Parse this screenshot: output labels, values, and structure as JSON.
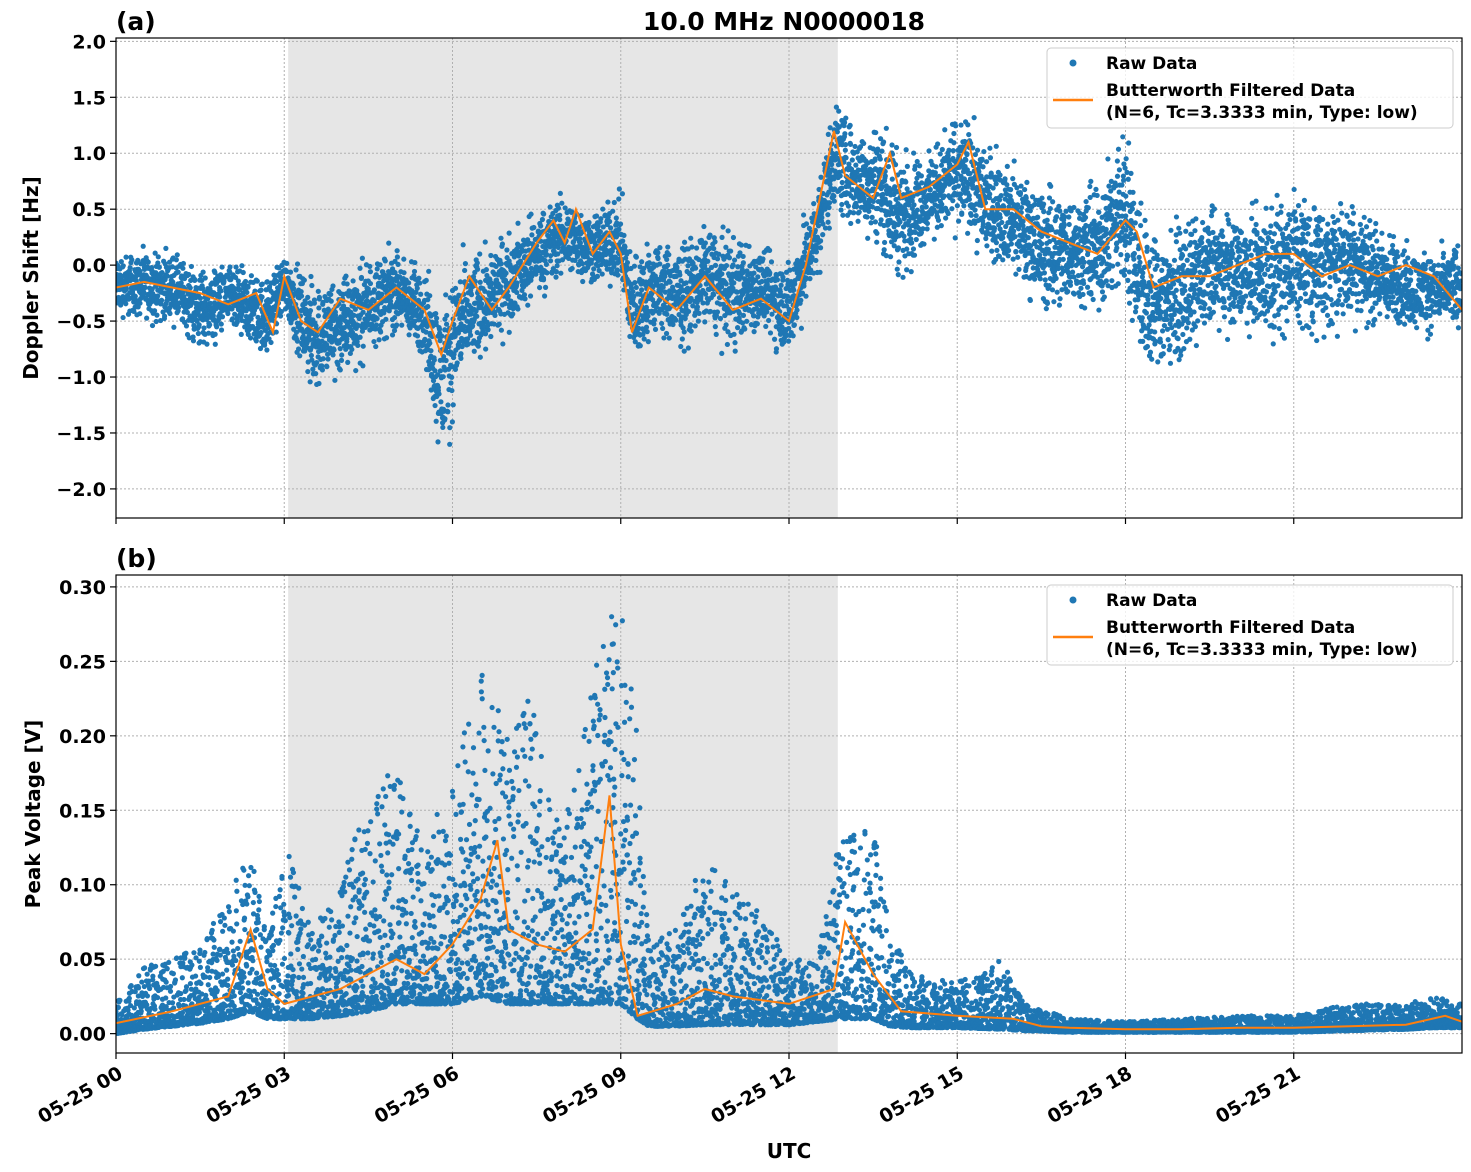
{
  "chart_data": [
    {
      "type": "scatter",
      "panel_label": "(a)",
      "title": "10.0 MHz N0000018",
      "xlabel": "",
      "ylabel": "Doppler Shift [Hz]",
      "xlim_hours_utc": [
        0,
        24
      ],
      "ylim": [
        -2.26,
        2.03
      ],
      "yticks": [
        "2.0",
        "1.5",
        "1.0",
        "0.5",
        "0.0",
        "−0.5",
        "−1.0",
        "−1.5",
        "−2.0"
      ],
      "ytick_values": [
        2.0,
        1.5,
        1.0,
        0.5,
        0.0,
        -0.5,
        -1.0,
        -1.5,
        -2.0
      ],
      "grid": true,
      "legend_position": "top-right",
      "shaded_interval_hours": [
        3.07,
        12.87
      ],
      "shade_color": "#e6e6e6",
      "series": [
        {
          "name": "Raw Data",
          "kind": "points",
          "color": "#1f77b4",
          "envelope_hour_min_max": [
            [
              0,
              -0.55,
              0.2
            ],
            [
              1,
              -0.6,
              0.2
            ],
            [
              1.5,
              -0.9,
              0.1
            ],
            [
              2,
              -0.7,
              0.1
            ],
            [
              2.7,
              -0.95,
              0.0
            ],
            [
              3,
              -0.5,
              0.2
            ],
            [
              3.5,
              -1.3,
              0.0
            ],
            [
              4,
              -1.2,
              0.1
            ],
            [
              4.5,
              -0.9,
              0.2
            ],
            [
              5,
              -0.7,
              0.25
            ],
            [
              5.5,
              -1.0,
              0.1
            ],
            [
              5.8,
              -2.05,
              -0.1
            ],
            [
              6.1,
              -1.3,
              0.2
            ],
            [
              6.5,
              -1.0,
              0.3
            ],
            [
              7,
              -0.7,
              0.4
            ],
            [
              7.5,
              -0.4,
              0.6
            ],
            [
              8,
              -0.2,
              0.75
            ],
            [
              8.5,
              -0.3,
              0.6
            ],
            [
              9,
              -0.3,
              0.75
            ],
            [
              9.2,
              -1.1,
              0.3
            ],
            [
              9.6,
              -0.8,
              0.4
            ],
            [
              10,
              -0.9,
              0.3
            ],
            [
              10.5,
              -0.7,
              0.5
            ],
            [
              11,
              -0.9,
              0.4
            ],
            [
              11.5,
              -0.7,
              0.3
            ],
            [
              12,
              -1.0,
              0.2
            ],
            [
              12.5,
              -0.2,
              0.8
            ],
            [
              12.8,
              0.3,
              1.7
            ],
            [
              13.2,
              0.2,
              1.3
            ],
            [
              13.6,
              0.0,
              1.5
            ],
            [
              14,
              -0.3,
              1.2
            ],
            [
              14.5,
              0.1,
              1.1
            ],
            [
              15,
              0.2,
              1.5
            ],
            [
              15.5,
              -0.1,
              1.3
            ],
            [
              16,
              -0.2,
              1.0
            ],
            [
              16.5,
              -0.6,
              0.9
            ],
            [
              17,
              -0.5,
              0.8
            ],
            [
              17.5,
              -0.6,
              0.9
            ],
            [
              18,
              -0.5,
              1.5
            ],
            [
              18.4,
              -1.3,
              0.6
            ],
            [
              19,
              -1.0,
              0.5
            ],
            [
              19.5,
              -0.8,
              0.7
            ],
            [
              20,
              -0.7,
              0.6
            ],
            [
              20.5,
              -0.8,
              0.7
            ],
            [
              21,
              -0.9,
              1.0
            ],
            [
              21.5,
              -0.8,
              0.7
            ],
            [
              22,
              -0.7,
              0.8
            ],
            [
              22.5,
              -0.7,
              0.5
            ],
            [
              23,
              -0.7,
              0.3
            ],
            [
              23.5,
              -0.7,
              0.2
            ],
            [
              24,
              -0.7,
              0.35
            ]
          ]
        },
        {
          "name": "Butterworth Filtered Data\n(N=6, Tc=3.3333 min, Type: low)",
          "kind": "line",
          "color": "#ff7f0e",
          "x_hours": [
            0,
            0.5,
            1,
            1.5,
            2,
            2.5,
            2.8,
            3,
            3.3,
            3.6,
            4,
            4.5,
            5,
            5.5,
            5.8,
            6,
            6.3,
            6.7,
            7,
            7.5,
            7.8,
            8,
            8.2,
            8.5,
            8.8,
            9,
            9.2,
            9.5,
            10,
            10.5,
            11,
            11.5,
            12,
            12.3,
            12.8,
            13,
            13.5,
            13.8,
            14,
            14.5,
            15,
            15.2,
            15.5,
            16,
            16.5,
            17,
            17.5,
            18,
            18.2,
            18.5,
            19,
            19.5,
            20,
            20.5,
            21,
            21.5,
            22,
            22.5,
            23,
            23.5,
            24
          ],
          "y": [
            -0.2,
            -0.15,
            -0.2,
            -0.25,
            -0.35,
            -0.25,
            -0.6,
            -0.1,
            -0.5,
            -0.6,
            -0.3,
            -0.4,
            -0.2,
            -0.4,
            -0.8,
            -0.5,
            -0.1,
            -0.4,
            -0.2,
            0.2,
            0.4,
            0.2,
            0.5,
            0.1,
            0.3,
            0.1,
            -0.6,
            -0.2,
            -0.4,
            -0.1,
            -0.4,
            -0.3,
            -0.5,
            0.0,
            1.2,
            0.8,
            0.6,
            1.0,
            0.6,
            0.7,
            0.9,
            1.1,
            0.5,
            0.5,
            0.3,
            0.2,
            0.1,
            0.4,
            0.3,
            -0.2,
            -0.1,
            -0.1,
            0.0,
            0.1,
            0.1,
            -0.1,
            0.0,
            -0.1,
            0.0,
            -0.1,
            -0.4
          ]
        }
      ]
    },
    {
      "type": "scatter",
      "panel_label": "(b)",
      "title": "",
      "xlabel": "UTC",
      "ylabel": "Peak Voltage [V]",
      "xlim_hours_utc": [
        0,
        24
      ],
      "xticks": [
        "05-25 00",
        "05-25 03",
        "05-25 06",
        "05-25 09",
        "05-25 12",
        "05-25 15",
        "05-25 18",
        "05-25 21"
      ],
      "xtick_hours": [
        0,
        3,
        6,
        9,
        12,
        15,
        18,
        21
      ],
      "ylim": [
        -0.013,
        0.308
      ],
      "yticks": [
        "0.30",
        "0.25",
        "0.20",
        "0.15",
        "0.10",
        "0.05",
        "0.00"
      ],
      "ytick_values": [
        0.3,
        0.25,
        0.2,
        0.15,
        0.1,
        0.05,
        0.0
      ],
      "grid": true,
      "legend_position": "top-right",
      "shaded_interval_hours": [
        3.07,
        12.87
      ],
      "shade_color": "#e6e6e6",
      "series": [
        {
          "name": "Raw Data",
          "kind": "points",
          "color": "#1f77b4",
          "envelope_hour_min_max": [
            [
              0,
              0.0,
              0.02
            ],
            [
              0.5,
              0.003,
              0.045
            ],
            [
              1,
              0.005,
              0.05
            ],
            [
              1.5,
              0.007,
              0.06
            ],
            [
              2,
              0.01,
              0.09
            ],
            [
              2.4,
              0.015,
              0.13
            ],
            [
              2.7,
              0.01,
              0.06
            ],
            [
              3,
              0.01,
              0.13
            ],
            [
              3.5,
              0.01,
              0.07
            ],
            [
              4,
              0.012,
              0.1
            ],
            [
              4.5,
              0.015,
              0.16
            ],
            [
              5,
              0.02,
              0.18
            ],
            [
              5.5,
              0.02,
              0.13
            ],
            [
              6,
              0.02,
              0.17
            ],
            [
              6.5,
              0.025,
              0.25
            ],
            [
              7,
              0.02,
              0.2
            ],
            [
              7.4,
              0.02,
              0.23
            ],
            [
              7.8,
              0.02,
              0.14
            ],
            [
              8.2,
              0.02,
              0.17
            ],
            [
              8.7,
              0.02,
              0.28
            ],
            [
              9,
              0.02,
              0.29
            ],
            [
              9.3,
              0.01,
              0.2
            ],
            [
              9.5,
              0.005,
              0.06
            ],
            [
              10,
              0.005,
              0.07
            ],
            [
              10.5,
              0.006,
              0.12
            ],
            [
              11,
              0.006,
              0.1
            ],
            [
              11.5,
              0.006,
              0.08
            ],
            [
              12,
              0.006,
              0.05
            ],
            [
              12.5,
              0.008,
              0.05
            ],
            [
              12.9,
              0.01,
              0.13
            ],
            [
              13.5,
              0.01,
              0.14
            ],
            [
              13.8,
              0.005,
              0.07
            ],
            [
              14.2,
              0.004,
              0.04
            ],
            [
              15,
              0.004,
              0.035
            ],
            [
              15.8,
              0.003,
              0.05
            ],
            [
              16.2,
              0.002,
              0.02
            ],
            [
              17,
              0.001,
              0.01
            ],
            [
              18,
              0.001,
              0.008
            ],
            [
              19,
              0.001,
              0.01
            ],
            [
              20,
              0.001,
              0.012
            ],
            [
              21,
              0.001,
              0.012
            ],
            [
              22,
              0.002,
              0.02
            ],
            [
              23,
              0.003,
              0.02
            ],
            [
              23.5,
              0.004,
              0.025
            ],
            [
              24,
              0.004,
              0.02
            ]
          ]
        },
        {
          "name": "Butterworth Filtered Data\n(N=6, Tc=3.3333 min, Type: low)",
          "kind": "line",
          "color": "#ff7f0e",
          "x_hours": [
            0,
            1,
            2,
            2.4,
            2.7,
            3,
            4,
            5,
            5.5,
            6,
            6.5,
            6.8,
            7,
            7.5,
            8,
            8.5,
            8.8,
            9,
            9.3,
            10,
            10.5,
            11,
            12,
            12.8,
            13,
            13.5,
            14,
            15,
            16,
            16.5,
            17,
            18,
            19,
            20,
            21,
            22,
            23,
            23.7,
            24
          ],
          "y": [
            0.007,
            0.015,
            0.025,
            0.07,
            0.03,
            0.02,
            0.03,
            0.05,
            0.04,
            0.06,
            0.09,
            0.13,
            0.07,
            0.06,
            0.055,
            0.07,
            0.16,
            0.06,
            0.012,
            0.02,
            0.03,
            0.025,
            0.02,
            0.03,
            0.075,
            0.04,
            0.015,
            0.012,
            0.01,
            0.005,
            0.004,
            0.003,
            0.003,
            0.004,
            0.004,
            0.005,
            0.006,
            0.012,
            0.008
          ]
        }
      ]
    }
  ]
}
